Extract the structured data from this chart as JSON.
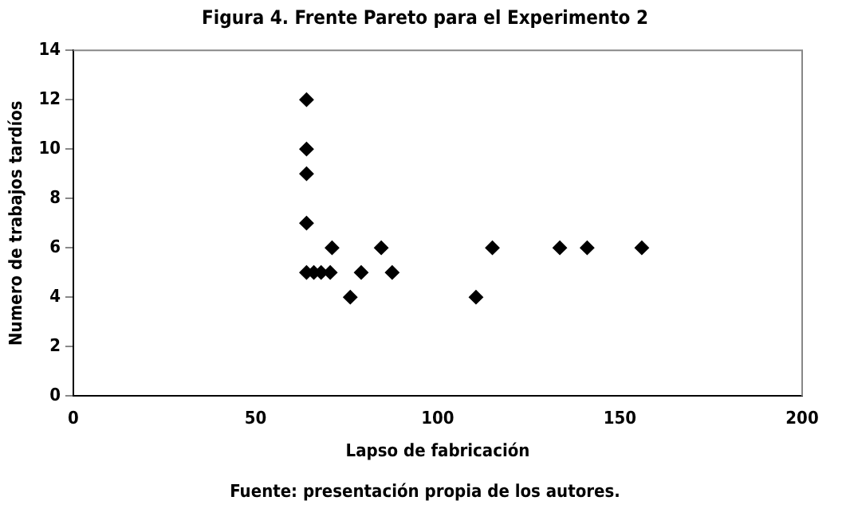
{
  "chart_data": {
    "type": "scatter",
    "title": "Figura 4. Frente Pareto para el Experimento 2",
    "xlabel": "Lapso de fabricación",
    "ylabel": "Numero de trabajos tardíos",
    "x": [
      64,
      64,
      64,
      64,
      64,
      66,
      68,
      70.5,
      71,
      76,
      79,
      84.5,
      87.5,
      110.5,
      115,
      133.5,
      141,
      156
    ],
    "values": [
      12,
      10,
      9,
      7,
      5,
      5,
      5,
      5,
      6,
      4,
      5,
      6,
      5,
      4,
      6,
      6,
      6,
      6
    ],
    "color": "#000000",
    "marker": "diamond",
    "xlim": [
      0,
      200
    ],
    "xticks": [
      0,
      50,
      100,
      150,
      200
    ],
    "ylim": [
      0,
      14
    ],
    "yticks": [
      0,
      2,
      4,
      6,
      8,
      10,
      12,
      14
    ],
    "grid": false,
    "legend": false,
    "annotations": [
      "Fuente: presentación propia de los autores."
    ]
  }
}
